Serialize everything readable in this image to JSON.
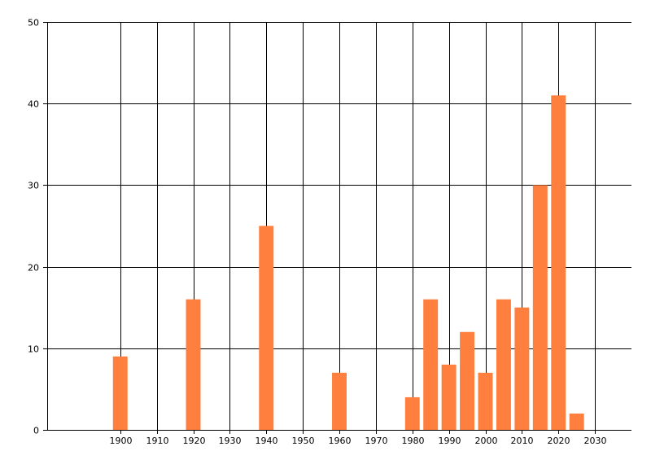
{
  "chart_data": {
    "type": "bar",
    "x": [
      1900,
      1920,
      1940,
      1960,
      1980,
      1985,
      1990,
      1995,
      2000,
      2005,
      2010,
      2015,
      2020,
      2025
    ],
    "values": [
      9,
      16,
      25,
      7,
      4,
      16,
      8,
      12,
      7,
      16,
      15,
      30,
      41,
      2
    ],
    "xlim": [
      1880,
      2040
    ],
    "ylim": [
      0,
      50
    ],
    "x_ticks": [
      1900,
      1910,
      1920,
      1930,
      1940,
      1950,
      1960,
      1970,
      1980,
      1990,
      2000,
      2010,
      2020,
      2030
    ],
    "x_tick_labels": [
      "1900",
      "1910",
      "1920",
      "1930",
      "1940",
      "1950",
      "1960",
      "1970",
      "1980",
      "1990",
      "2000",
      "2010",
      "2020",
      "2030"
    ],
    "y_ticks": [
      0,
      10,
      20,
      30,
      40,
      50
    ],
    "y_tick_labels": [
      "0",
      "10",
      "20",
      "30",
      "40",
      "50"
    ],
    "title": "",
    "xlabel": "",
    "ylabel": "",
    "grid": true,
    "bar_color": "#FF7F3F",
    "grid_color": "#000000"
  }
}
